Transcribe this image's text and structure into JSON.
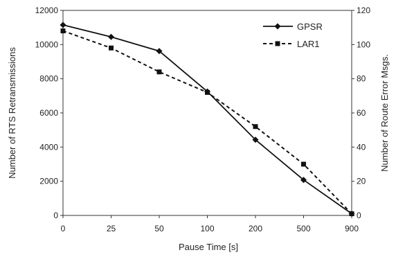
{
  "chart_data": {
    "type": "line",
    "categories": [
      "0",
      "25",
      "50",
      "100",
      "200",
      "500",
      "900"
    ],
    "xlabel": "Pause Time [s]",
    "ylabel_left": "Number of RTS Retransmissions",
    "ylabel_right": "Number of Route Error Msgs.",
    "ylim_left": [
      0,
      12000
    ],
    "ylim_right": [
      0,
      120
    ],
    "yticks_left": [
      "0",
      "2000",
      "4000",
      "6000",
      "8000",
      "10000",
      "12000"
    ],
    "yticks_right": [
      "0",
      "20",
      "40",
      "60",
      "80",
      "100",
      "120"
    ],
    "legend_position": "top-right",
    "grid": false,
    "series": [
      {
        "name": "GPSR",
        "axis": "left",
        "style": "solid",
        "marker": "diamond",
        "values": [
          11150,
          10450,
          9620,
          7250,
          4430,
          2080,
          100
        ]
      },
      {
        "name": "LAR1",
        "axis": "right",
        "style": "dashed",
        "marker": "square",
        "values": [
          108,
          98,
          84,
          72,
          52,
          30,
          1
        ]
      }
    ]
  }
}
